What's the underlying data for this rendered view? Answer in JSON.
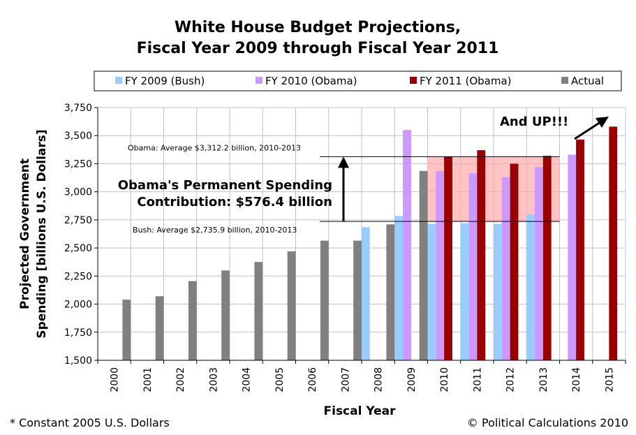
{
  "chart_data": {
    "type": "bar",
    "title_line1": "White House Budget Projections,",
    "title_line2": "Fiscal Year 2009 through Fiscal Year 2011",
    "xlabel": "Fiscal Year",
    "ylabel_line1": "Projected Government",
    "ylabel_line2": "Spending [billions U.S. Dollars]",
    "ylim": [
      1500,
      3750
    ],
    "yticks": [
      1500,
      1750,
      2000,
      2250,
      2500,
      2750,
      3000,
      3250,
      3500,
      3750
    ],
    "ytick_labels": [
      "1,500",
      "1,750",
      "2,000",
      "2,250",
      "2,500",
      "2,750",
      "3,000",
      "3,250",
      "3,500",
      "3,750"
    ],
    "categories": [
      "2000",
      "2001",
      "2002",
      "2003",
      "2004",
      "2005",
      "2006",
      "2007",
      "2008",
      "2009",
      "2010",
      "2011",
      "2012",
      "2013",
      "2014",
      "2015"
    ],
    "legend_placement": "top",
    "series": [
      {
        "name": "FY 2009 (Bush)",
        "color": "#99ccff",
        "values": [
          null,
          null,
          null,
          null,
          null,
          null,
          null,
          null,
          2685,
          2785,
          2715,
          2720,
          2715,
          2800,
          null,
          null
        ]
      },
      {
        "name": "FY 2010 (Obama)",
        "color": "#cc99ff",
        "values": [
          null,
          null,
          null,
          null,
          null,
          null,
          null,
          null,
          null,
          3550,
          3185,
          3165,
          3130,
          3220,
          3330,
          null
        ]
      },
      {
        "name": "FY 2011 (Obama)",
        "color": "#990000",
        "values": [
          null,
          null,
          null,
          null,
          null,
          null,
          null,
          null,
          null,
          null,
          3315,
          3370,
          3250,
          3320,
          3465,
          3580
        ]
      },
      {
        "name": "Actual",
        "color": "#808080",
        "values": [
          2040,
          2070,
          2205,
          2300,
          2375,
          2470,
          2565,
          2565,
          2710,
          3185,
          null,
          null,
          null,
          null,
          null,
          null
        ]
      }
    ],
    "annotations": {
      "obama_avg_label": "Obama: Average $3,312.2 billion, 2010-2013",
      "obama_avg_value": 3312.2,
      "bush_avg_label": "Bush: Average $2,735.9 billion, 2010-2013",
      "bush_avg_value": 2735.9,
      "callout_line1": "Obama's Permanent Spending",
      "callout_line2": "Contribution: $576.4 billion",
      "and_up": "And UP!!!",
      "shaded_region_years": [
        "2010",
        "2013"
      ],
      "shaded_color": "#ffaaaa"
    }
  },
  "footer": {
    "note": "* Constant 2005 U.S. Dollars",
    "credit": "© Political Calculations 2010"
  }
}
